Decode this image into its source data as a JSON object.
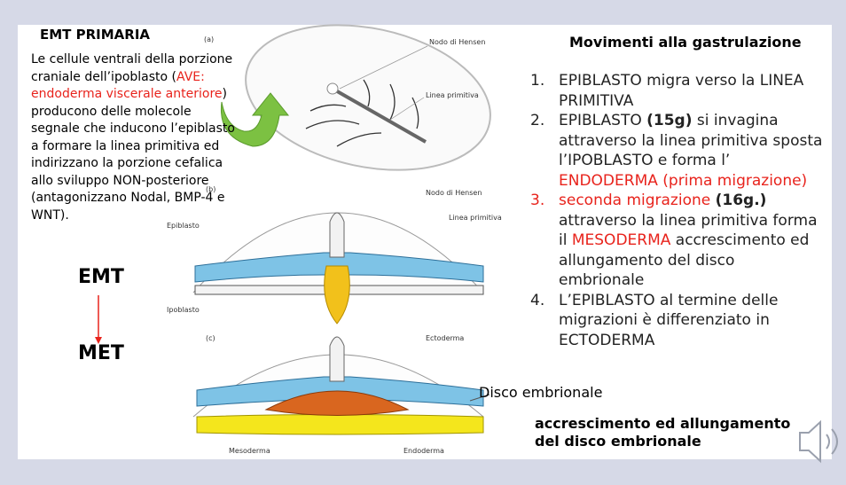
{
  "left": {
    "title": "EMT PRIMARIA",
    "paragraph": [
      {
        "text": "Le cellule ventrali della porzione craniale dell’ipoblasto ("
      },
      {
        "text": "AVE: endoderma viscerale anteriore",
        "style": "red"
      },
      {
        "text": ") producono delle molecole segnale che inducono l’epiblasto a formare la linea primitiva ed indirizzano la porzione cefalica allo sviluppo NON-posteriore (antagonizzano Nodal, BMP-4 e WNT)."
      }
    ]
  },
  "transition": {
    "from": "EMT",
    "to": "MET"
  },
  "figure": {
    "panels": [
      {
        "label": "(a)",
        "annotations": [
          "Nodo di Hensen",
          "Linea primitiva"
        ]
      },
      {
        "label": "(b)",
        "annotations": [
          "Nodo di Hensen",
          "Linea primitiva",
          "Epiblasto",
          "Ipoblasto"
        ]
      },
      {
        "label": "(c)",
        "annotations": [
          "Ectoderma",
          "Mesoderma",
          "Endoderma"
        ]
      }
    ],
    "caption": "Disco embrionale"
  },
  "right": {
    "title": "Movimenti alla gastrulazione",
    "items": [
      {
        "number": "1.",
        "segments": [
          {
            "text": "EPIBLASTO migra verso la LINEA PRIMITIVA"
          }
        ]
      },
      {
        "number": "2.",
        "segments": [
          {
            "text": "EPIBLASTO "
          },
          {
            "text": "(15g)",
            "style": "bold"
          },
          {
            "text": " si invagina attraverso la linea primitiva sposta l’IPOBLASTO e forma l’ "
          },
          {
            "text": "ENDODERMA (prima migrazione)",
            "style": "red"
          }
        ]
      },
      {
        "number": "3.",
        "number_style": "red",
        "segments": [
          {
            "text": "seconda migrazione ",
            "style": "red"
          },
          {
            "text": "(16g.)",
            "style": "bold"
          },
          {
            "text": " attraverso la linea primitiva forma il "
          },
          {
            "text": "MESODERMA",
            "style": "red"
          },
          {
            "text": " accrescimento ed allungamento del disco embrionale"
          }
        ]
      },
      {
        "number": "4.",
        "segments": [
          {
            "text": "L’EPIBLASTO al termine delle migrazioni  è differenziato in ECTODERMA"
          }
        ]
      }
    ],
    "footer": "accrescimento ed allungamento del disco embrionale"
  }
}
